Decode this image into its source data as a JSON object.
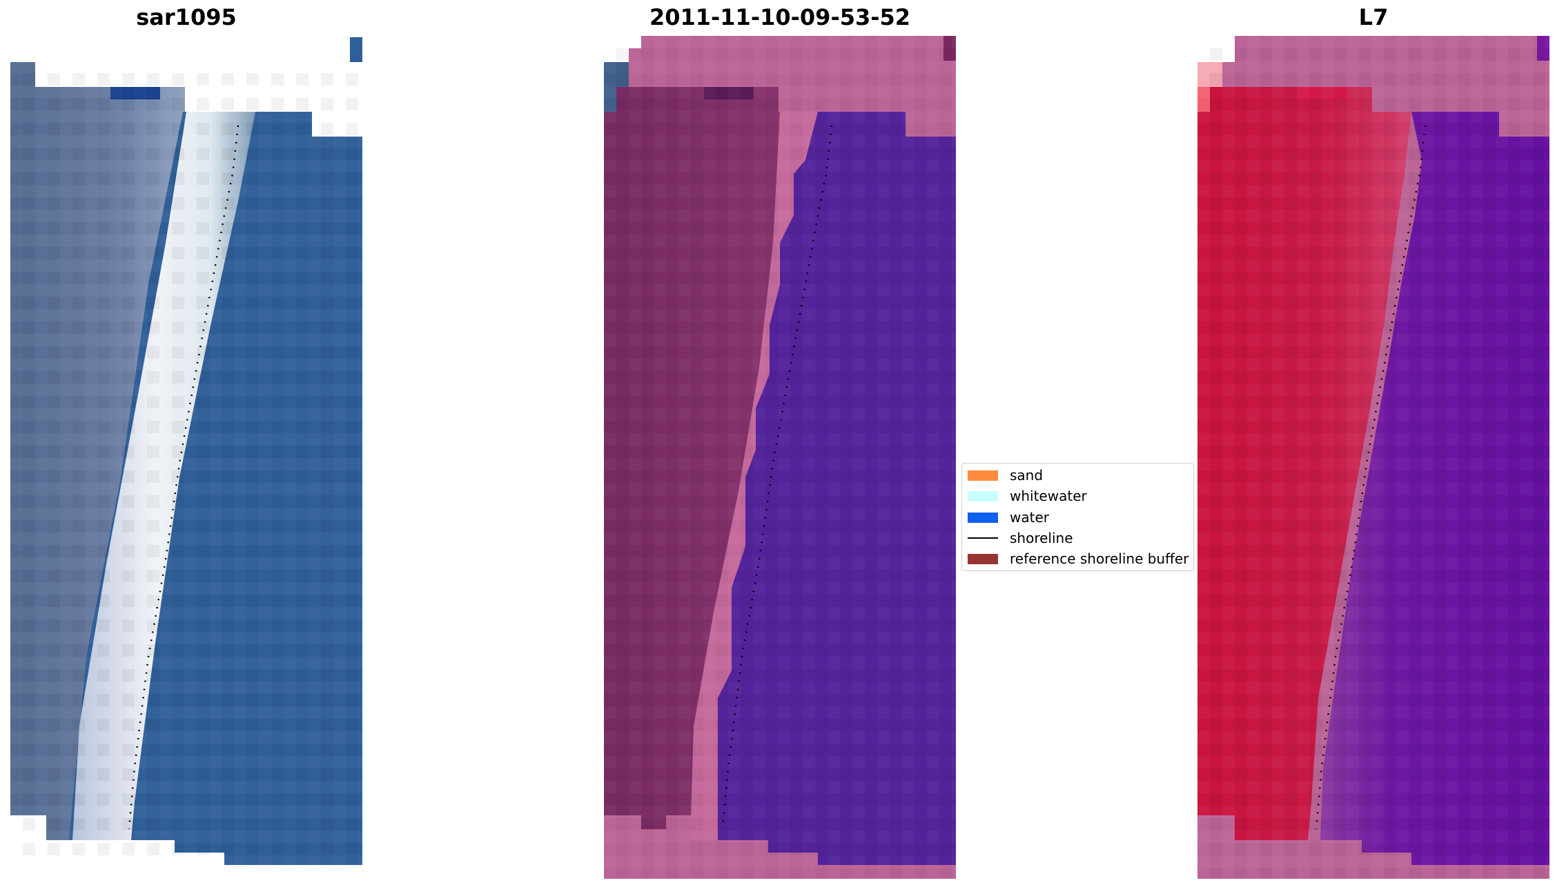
{
  "panels": [
    {
      "title": "sar1095"
    },
    {
      "title": "2011-11-10-09-53-52"
    },
    {
      "title": "L7"
    }
  ],
  "legend": {
    "items": [
      {
        "label": "sand",
        "color": "#ff8c3c",
        "kind": "patch"
      },
      {
        "label": "whitewater",
        "color": "#c8ffff",
        "kind": "patch"
      },
      {
        "label": "water",
        "color": "#1060f0",
        "kind": "patch"
      },
      {
        "label": "shoreline",
        "color": "#000000",
        "kind": "line"
      },
      {
        "label": "reference shoreline buffer",
        "color": "#993333",
        "kind": "patch"
      }
    ]
  },
  "colors": {
    "rgb_land": "#5a6e96",
    "rgb_beach": "#e8eef4",
    "rgb_water": "#2d5f9a",
    "class_land": "#7a2a63",
    "class_beach": "#c46a9c",
    "class_water": "#53239a",
    "class_outside": "#bb6597",
    "nir_land": "#c8143e",
    "nir_water": "#6a12a0",
    "nir_outside": "#bb6597"
  }
}
